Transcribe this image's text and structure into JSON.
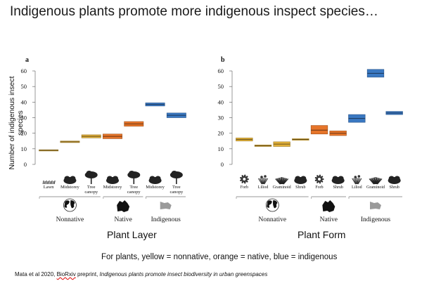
{
  "slide": {
    "title": "Indigenous plants promote more indigenous inspect species…",
    "note": "For plants, yellow = nonnative, orange = native, blue = indigenous",
    "citation_prefix": "Mata et al 2020, ",
    "citation_source": "BioRxiv",
    "citation_middle": " preprint, ",
    "citation_title": "Indigenous plants promote insect biodiversity in urban greenspaces"
  },
  "colors": {
    "nonnative": "#e2b13a",
    "native": "#e6752a",
    "indigenous": "#3a78c2",
    "axis": "#555555"
  },
  "chart_data": [
    {
      "type": "bar",
      "panel": "a",
      "caption": "Plant Layer",
      "ylabel": "Number of indigenous insect species",
      "ylim": [
        0,
        60
      ],
      "yticks": [
        0,
        10,
        20,
        30,
        40,
        50,
        60
      ],
      "categories": [
        "Lawn",
        "Midstorey",
        "Tree canopy",
        "Midstorey",
        "Tree canopy",
        "Midstorey",
        "Tree canopy"
      ],
      "icons": [
        "grass-icon",
        "shrub-icon",
        "tree-icon",
        "shrub-icon",
        "tree-icon",
        "shrub-icon",
        "tree-icon"
      ],
      "origin": [
        "nonnative",
        "nonnative",
        "nonnative",
        "native",
        "native",
        "indigenous",
        "indigenous"
      ],
      "values": [
        9,
        14.5,
        18,
        18,
        26,
        38.5,
        31.5
      ],
      "intervals": [
        [
          8.6,
          9.4
        ],
        [
          14,
          15
        ],
        [
          17,
          19
        ],
        [
          16.5,
          19.5
        ],
        [
          24.5,
          27.5
        ],
        [
          37.5,
          39.5
        ],
        [
          30,
          33
        ]
      ],
      "groups": [
        {
          "name": "Nonnative",
          "icon": "world-map-icon",
          "start": 0,
          "end": 2
        },
        {
          "name": "Native",
          "icon": "australia-map-icon",
          "start": 3,
          "end": 4
        },
        {
          "name": "Indigenous",
          "icon": "victoria-map-icon",
          "start": 5,
          "end": 6
        }
      ]
    },
    {
      "type": "bar",
      "panel": "b",
      "caption": "Plant Form",
      "ylim": [
        0,
        60
      ],
      "yticks": [
        0,
        10,
        20,
        30,
        40,
        50,
        60
      ],
      "categories": [
        "Forb",
        "Liliod",
        "Graminoid",
        "Shrub",
        "Forb",
        "Shrub",
        "Liliod",
        "Graminoid",
        "Shrub"
      ],
      "icons": [
        "forb-icon",
        "lilioid-icon",
        "graminoid-icon",
        "shrub-icon",
        "forb-icon",
        "shrub-icon",
        "lilioid-icon",
        "graminoid-icon",
        "shrub-icon"
      ],
      "origin": [
        "nonnative",
        "nonnative",
        "nonnative",
        "nonnative",
        "native",
        "native",
        "indigenous",
        "indigenous",
        "indigenous"
      ],
      "values": [
        16,
        12,
        13,
        16,
        22,
        20,
        29.5,
        58.5,
        33
      ],
      "intervals": [
        [
          15,
          17
        ],
        [
          11.5,
          12.5
        ],
        [
          11.5,
          14.5
        ],
        [
          15.5,
          16.5
        ],
        [
          19.5,
          25
        ],
        [
          18.5,
          21.5
        ],
        [
          27,
          32
        ],
        [
          56,
          61
        ],
        [
          32,
          34
        ]
      ],
      "groups": [
        {
          "name": "Nonnative",
          "icon": "world-map-icon",
          "start": 0,
          "end": 3
        },
        {
          "name": "Native",
          "icon": "australia-map-icon",
          "start": 4,
          "end": 5
        },
        {
          "name": "Indigenous",
          "icon": "victoria-map-icon",
          "start": 6,
          "end": 8
        }
      ]
    }
  ]
}
